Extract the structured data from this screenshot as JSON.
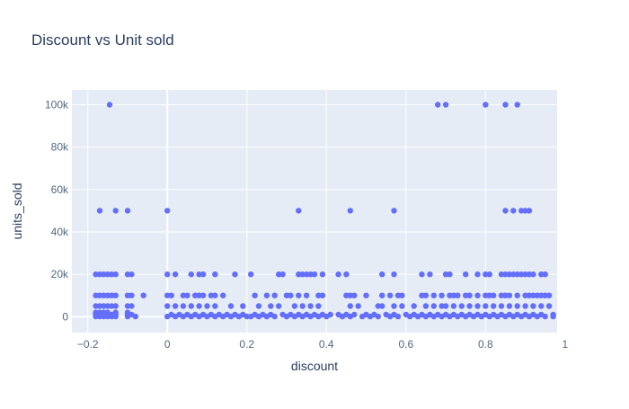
{
  "colors": {
    "background": "#ffffff",
    "plot_background": "#e5ecf6",
    "grid": "#ffffff",
    "zeroline": "#ffffff",
    "marker": "#636efa",
    "text": "#2a3f5f",
    "tick_text": "#506784"
  },
  "chart_data": {
    "type": "scatter",
    "title": "Discount vs Unit sold",
    "xlabel": "discount",
    "ylabel": "units_sold",
    "xlim": [
      -0.24,
      0.98
    ],
    "ylim": [
      -7500,
      107000
    ],
    "xticks": [
      -0.2,
      0,
      0.2,
      0.4,
      0.6,
      0.8,
      1
    ],
    "xtick_labels": [
      "−0.2",
      "0",
      "0.2",
      "0.4",
      "0.6",
      "0.8",
      "1"
    ],
    "yticks": [
      0,
      20000,
      40000,
      60000,
      80000,
      100000
    ],
    "ytick_labels": [
      "0",
      "20k",
      "40k",
      "60k",
      "80k",
      "100k"
    ],
    "grid": true,
    "legend": "none",
    "series": [
      {
        "points": [
          [
            -0.18,
            20000
          ],
          [
            -0.17,
            20000
          ],
          [
            -0.16,
            20000
          ],
          [
            -0.15,
            20000
          ],
          [
            -0.14,
            20000
          ],
          [
            -0.13,
            20000
          ],
          [
            -0.1,
            20000
          ],
          [
            -0.09,
            20000
          ],
          [
            -0.18,
            10000
          ],
          [
            -0.17,
            10000
          ],
          [
            -0.16,
            10000
          ],
          [
            -0.15,
            10000
          ],
          [
            -0.14,
            10000
          ],
          [
            -0.13,
            10000
          ],
          [
            -0.1,
            10000
          ],
          [
            -0.09,
            10000
          ],
          [
            -0.06,
            10000
          ],
          [
            -0.18,
            5000
          ],
          [
            -0.17,
            5000
          ],
          [
            -0.16,
            5000
          ],
          [
            -0.15,
            5000
          ],
          [
            -0.14,
            5000
          ],
          [
            -0.13,
            5000
          ],
          [
            -0.1,
            5000
          ],
          [
            -0.09,
            5000
          ],
          [
            -0.18,
            2000
          ],
          [
            -0.17,
            2000
          ],
          [
            -0.16,
            2000
          ],
          [
            -0.15,
            2000
          ],
          [
            -0.13,
            2000
          ],
          [
            -0.1,
            2000
          ],
          [
            -0.18,
            1000
          ],
          [
            -0.17,
            1000
          ],
          [
            -0.16,
            1000
          ],
          [
            -0.15,
            1000
          ],
          [
            -0.14,
            1000
          ],
          [
            -0.13,
            1000
          ],
          [
            -0.1,
            1000
          ],
          [
            -0.09,
            1000
          ],
          [
            -0.18,
            100
          ],
          [
            -0.17,
            100
          ],
          [
            -0.16,
            100
          ],
          [
            -0.15,
            100
          ],
          [
            -0.14,
            100
          ],
          [
            -0.13,
            100
          ],
          [
            -0.1,
            100
          ],
          [
            -0.08,
            100
          ],
          [
            -0.17,
            50000
          ],
          [
            -0.13,
            50000
          ],
          [
            -0.1,
            50000
          ],
          [
            -0.145,
            100000
          ],
          [
            0,
            50000
          ],
          [
            0,
            20000
          ],
          [
            0.02,
            20000
          ],
          [
            0,
            10000
          ],
          [
            0.01,
            10000
          ],
          [
            0.04,
            10000
          ],
          [
            0.05,
            10000
          ],
          [
            0.07,
            10000
          ],
          [
            0.08,
            10000
          ],
          [
            0.09,
            10000
          ],
          [
            0.11,
            10000
          ],
          [
            0.12,
            10000
          ],
          [
            0.14,
            10000
          ],
          [
            0.06,
            20000
          ],
          [
            0.08,
            20000
          ],
          [
            0.09,
            20000
          ],
          [
            0.12,
            20000
          ],
          [
            0.17,
            20000
          ],
          [
            0.21,
            20000
          ],
          [
            0.0,
            5000
          ],
          [
            0.02,
            5000
          ],
          [
            0.04,
            5000
          ],
          [
            0.06,
            5000
          ],
          [
            0.08,
            5000
          ],
          [
            0.1,
            5000
          ],
          [
            0.12,
            5000
          ],
          [
            0.16,
            5000
          ],
          [
            0.19,
            5000
          ],
          [
            0.01,
            1000
          ],
          [
            0.03,
            1000
          ],
          [
            0.05,
            1000
          ],
          [
            0.07,
            1000
          ],
          [
            0.09,
            1000
          ],
          [
            0.11,
            1000
          ],
          [
            0.13,
            1000
          ],
          [
            0.15,
            1000
          ],
          [
            0.17,
            1000
          ],
          [
            0.19,
            1000
          ],
          [
            0.0,
            100
          ],
          [
            0.02,
            100
          ],
          [
            0.04,
            100
          ],
          [
            0.06,
            100
          ],
          [
            0.08,
            100
          ],
          [
            0.1,
            100
          ],
          [
            0.12,
            100
          ],
          [
            0.14,
            100
          ],
          [
            0.16,
            100
          ],
          [
            0.18,
            100
          ],
          [
            0.2,
            100
          ],
          [
            0.22,
            10000
          ],
          [
            0.25,
            10000
          ],
          [
            0.27,
            10000
          ],
          [
            0.3,
            10000
          ],
          [
            0.31,
            10000
          ],
          [
            0.33,
            10000
          ],
          [
            0.35,
            10000
          ],
          [
            0.38,
            10000
          ],
          [
            0.39,
            10000
          ],
          [
            0.28,
            20000
          ],
          [
            0.29,
            20000
          ],
          [
            0.33,
            20000
          ],
          [
            0.34,
            20000
          ],
          [
            0.35,
            20000
          ],
          [
            0.36,
            20000
          ],
          [
            0.37,
            20000
          ],
          [
            0.39,
            20000
          ],
          [
            0.43,
            20000
          ],
          [
            0.45,
            20000
          ],
          [
            0.33,
            50000
          ],
          [
            0.23,
            5000
          ],
          [
            0.26,
            5000
          ],
          [
            0.28,
            5000
          ],
          [
            0.32,
            5000
          ],
          [
            0.34,
            5000
          ],
          [
            0.36,
            5000
          ],
          [
            0.38,
            5000
          ],
          [
            0.22,
            1000
          ],
          [
            0.24,
            1000
          ],
          [
            0.26,
            1000
          ],
          [
            0.29,
            1000
          ],
          [
            0.31,
            1000
          ],
          [
            0.33,
            1000
          ],
          [
            0.35,
            1000
          ],
          [
            0.37,
            1000
          ],
          [
            0.39,
            1000
          ],
          [
            0.41,
            1000
          ],
          [
            0.21,
            100
          ],
          [
            0.23,
            100
          ],
          [
            0.25,
            100
          ],
          [
            0.27,
            100
          ],
          [
            0.3,
            100
          ],
          [
            0.32,
            100
          ],
          [
            0.34,
            100
          ],
          [
            0.36,
            100
          ],
          [
            0.38,
            100
          ],
          [
            0.4,
            100
          ],
          [
            0.45,
            10000
          ],
          [
            0.46,
            10000
          ],
          [
            0.47,
            10000
          ],
          [
            0.5,
            10000
          ],
          [
            0.54,
            10000
          ],
          [
            0.56,
            10000
          ],
          [
            0.58,
            10000
          ],
          [
            0.59,
            10000
          ],
          [
            0.46,
            50000
          ],
          [
            0.57,
            50000
          ],
          [
            0.54,
            20000
          ],
          [
            0.57,
            20000
          ],
          [
            0.46,
            5000
          ],
          [
            0.48,
            5000
          ],
          [
            0.53,
            5000
          ],
          [
            0.54,
            5000
          ],
          [
            0.57,
            5000
          ],
          [
            0.59,
            5000
          ],
          [
            0.43,
            1000
          ],
          [
            0.45,
            1000
          ],
          [
            0.47,
            1000
          ],
          [
            0.5,
            1000
          ],
          [
            0.52,
            1000
          ],
          [
            0.55,
            1000
          ],
          [
            0.57,
            1000
          ],
          [
            0.6,
            1000
          ],
          [
            0.44,
            100
          ],
          [
            0.46,
            100
          ],
          [
            0.49,
            100
          ],
          [
            0.51,
            100
          ],
          [
            0.53,
            100
          ],
          [
            0.56,
            100
          ],
          [
            0.58,
            100
          ],
          [
            0.61,
            100
          ],
          [
            0.64,
            20000
          ],
          [
            0.66,
            20000
          ],
          [
            0.7,
            20000
          ],
          [
            0.71,
            20000
          ],
          [
            0.75,
            20000
          ],
          [
            0.78,
            20000
          ],
          [
            0.8,
            20000
          ],
          [
            0.81,
            20000
          ],
          [
            0.84,
            20000
          ],
          [
            0.85,
            20000
          ],
          [
            0.86,
            20000
          ],
          [
            0.87,
            20000
          ],
          [
            0.88,
            20000
          ],
          [
            0.89,
            20000
          ],
          [
            0.9,
            20000
          ],
          [
            0.91,
            20000
          ],
          [
            0.92,
            20000
          ],
          [
            0.94,
            20000
          ],
          [
            0.95,
            20000
          ],
          [
            0.64,
            10000
          ],
          [
            0.65,
            10000
          ],
          [
            0.67,
            10000
          ],
          [
            0.69,
            10000
          ],
          [
            0.71,
            10000
          ],
          [
            0.72,
            10000
          ],
          [
            0.73,
            10000
          ],
          [
            0.75,
            10000
          ],
          [
            0.76,
            10000
          ],
          [
            0.78,
            10000
          ],
          [
            0.8,
            10000
          ],
          [
            0.81,
            10000
          ],
          [
            0.82,
            10000
          ],
          [
            0.84,
            10000
          ],
          [
            0.85,
            10000
          ],
          [
            0.86,
            10000
          ],
          [
            0.88,
            10000
          ],
          [
            0.9,
            10000
          ],
          [
            0.91,
            10000
          ],
          [
            0.92,
            10000
          ],
          [
            0.93,
            10000
          ],
          [
            0.94,
            10000
          ],
          [
            0.95,
            10000
          ],
          [
            0.96,
            10000
          ],
          [
            0.68,
            100000
          ],
          [
            0.7,
            100000
          ],
          [
            0.8,
            100000
          ],
          [
            0.85,
            100000
          ],
          [
            0.88,
            100000
          ],
          [
            0.85,
            50000
          ],
          [
            0.87,
            50000
          ],
          [
            0.89,
            50000
          ],
          [
            0.9,
            50000
          ],
          [
            0.91,
            50000
          ],
          [
            0.62,
            5000
          ],
          [
            0.65,
            5000
          ],
          [
            0.67,
            5000
          ],
          [
            0.69,
            5000
          ],
          [
            0.7,
            5000
          ],
          [
            0.72,
            5000
          ],
          [
            0.74,
            5000
          ],
          [
            0.76,
            5000
          ],
          [
            0.78,
            5000
          ],
          [
            0.8,
            5000
          ],
          [
            0.82,
            5000
          ],
          [
            0.84,
            5000
          ],
          [
            0.86,
            5000
          ],
          [
            0.88,
            5000
          ],
          [
            0.9,
            5000
          ],
          [
            0.92,
            5000
          ],
          [
            0.94,
            5000
          ],
          [
            0.96,
            5000
          ],
          [
            0.62,
            1000
          ],
          [
            0.64,
            1000
          ],
          [
            0.66,
            1000
          ],
          [
            0.68,
            1000
          ],
          [
            0.7,
            1000
          ],
          [
            0.72,
            1000
          ],
          [
            0.74,
            1000
          ],
          [
            0.76,
            1000
          ],
          [
            0.78,
            1000
          ],
          [
            0.8,
            1000
          ],
          [
            0.82,
            1000
          ],
          [
            0.84,
            1000
          ],
          [
            0.86,
            1000
          ],
          [
            0.88,
            1000
          ],
          [
            0.9,
            1000
          ],
          [
            0.92,
            1000
          ],
          [
            0.94,
            1000
          ],
          [
            0.97,
            1000
          ],
          [
            0.63,
            100
          ],
          [
            0.65,
            100
          ],
          [
            0.67,
            100
          ],
          [
            0.69,
            100
          ],
          [
            0.71,
            100
          ],
          [
            0.73,
            100
          ],
          [
            0.75,
            100
          ],
          [
            0.77,
            100
          ],
          [
            0.79,
            100
          ],
          [
            0.81,
            100
          ],
          [
            0.83,
            100
          ],
          [
            0.85,
            100
          ],
          [
            0.87,
            100
          ],
          [
            0.89,
            100
          ],
          [
            0.91,
            100
          ],
          [
            0.93,
            100
          ],
          [
            0.95,
            100
          ],
          [
            0.97,
            100
          ]
        ]
      }
    ]
  }
}
